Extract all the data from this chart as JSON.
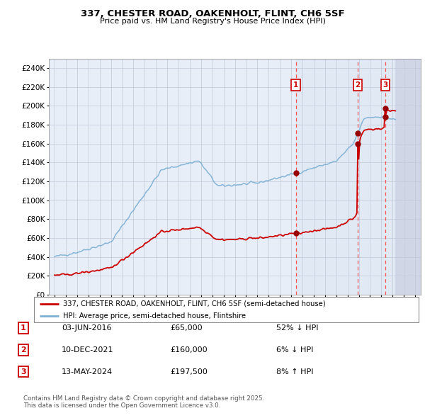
{
  "title": "337, CHESTER ROAD, OAKENHOLT, FLINT, CH6 5SF",
  "subtitle": "Price paid vs. HM Land Registry's House Price Index (HPI)",
  "hpi_color": "#7bafd4",
  "price_color": "#cc0000",
  "sale_marker_color": "#990000",
  "background_plot": "#e8eef8",
  "future_bg": "#d8d8e8",
  "grid_color": "#c0c8d8",
  "dashed_line_color": "#ff4444",
  "legend_line1": "337, CHESTER ROAD, OAKENHOLT, FLINT, CH6 5SF (semi-detached house)",
  "legend_line2": "HPI: Average price, semi-detached house, Flintshire",
  "footer": "Contains HM Land Registry data © Crown copyright and database right 2025.\nThis data is licensed under the Open Government Licence v3.0.",
  "xlim_start": 1994.5,
  "xlim_end": 2027.5,
  "ylim_max": 250000,
  "yticks": [
    0,
    20000,
    40000,
    60000,
    80000,
    100000,
    120000,
    140000,
    160000,
    180000,
    200000,
    220000,
    240000
  ],
  "sale_dates_num": [
    2016.4167,
    2021.9167,
    2024.3667
  ],
  "sale_prices": [
    65000,
    160000,
    197500
  ],
  "future_start": 2025.25
}
